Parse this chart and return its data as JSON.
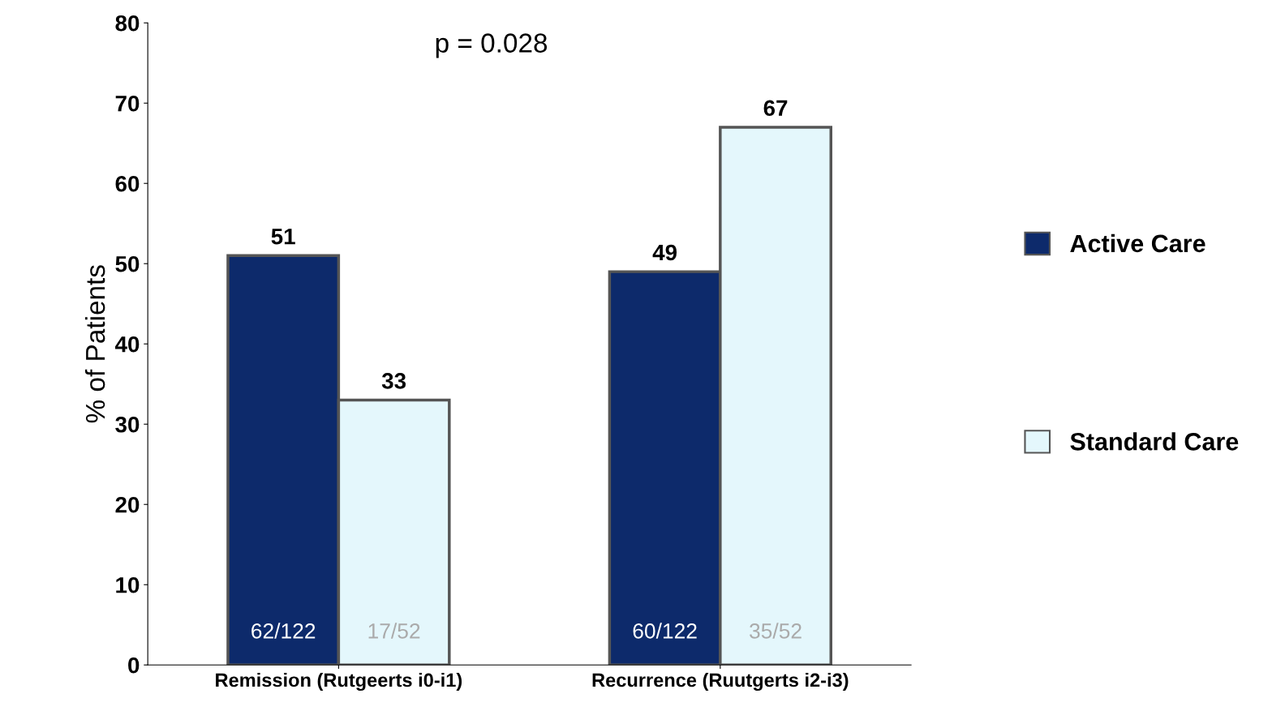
{
  "chart_data": {
    "type": "bar",
    "ylabel": "% of Patients",
    "categories": [
      "Remission (Rutgeerts i0-i1)",
      "Recurrence (Ruutgerts i2-i3)"
    ],
    "series": [
      {
        "name": "Active Care",
        "color": "#0d2a6b",
        "values": [
          51,
          49
        ]
      },
      {
        "name": "Standard Care",
        "color": "#e4f7fc",
        "values": [
          33,
          67
        ]
      }
    ],
    "ylim": [
      0,
      80
    ],
    "yticks": [
      0,
      10,
      20,
      30,
      40,
      50,
      60,
      70,
      80
    ],
    "data_labels": true,
    "grid": false,
    "legend": "right",
    "annotations": [
      "p = 0.028",
      {
        "text": "62/122",
        "x": "Remission (Rutgeerts i0-i1)",
        "y": 4
      },
      {
        "text": "17/52",
        "x": "Remission (Rutgeerts i0-i1)",
        "y": 4
      },
      {
        "text": "60/122",
        "x": "Recurrence (Ruutgerts i2-i3)",
        "y": 4
      },
      {
        "text": "35/52",
        "x": "Recurrence (Ruutgerts i2-i3)",
        "y": 4
      }
    ]
  }
}
